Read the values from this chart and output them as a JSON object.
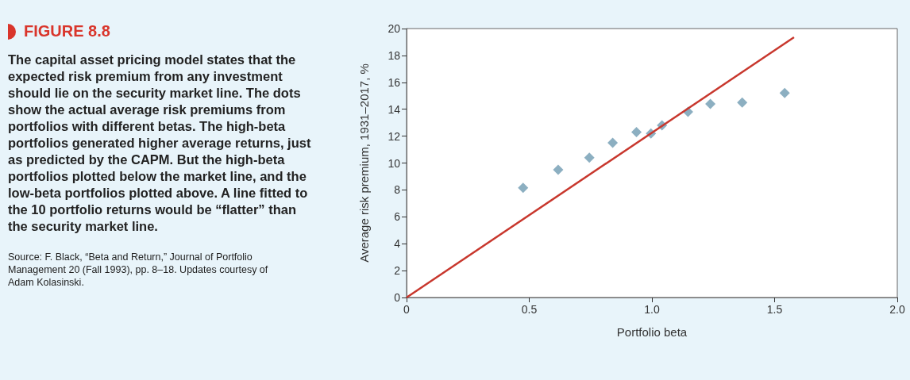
{
  "chart_data": {
    "type": "scatter",
    "title": "FIGURE 8.8",
    "subtitle": "The capital asset pricing model states that the expected risk premium from any investment should lie on the security market line. The dots show the actual average risk premiums from portfolios with different betas. The high-beta portfolios generated higher average returns, just as predicted by the CAPM. But the high-beta portfolios plotted below the market line, and the low-beta portfolios plotted above. A line fitted to the 10 portfolio returns would be “flatter” than the security market line.",
    "annotations": [
      "Source: F. Black, “Beta and Return,” Journal of Portfolio Management 20 (Fall 1993), pp. 8–18. Updates courtesy of Adam Kolasinski."
    ],
    "xlabel": "Portfolio beta",
    "ylabel": "Average risk premium, 1931–2017, %",
    "xlim": [
      0,
      2
    ],
    "xticks": [
      0,
      0.5,
      {
        "value": 1,
        "label": "1.0"
      },
      1.5,
      {
        "value": 2,
        "label": "2.0"
      }
    ],
    "ylim": [
      0,
      20
    ],
    "yticks": [
      0,
      2,
      4,
      6,
      8,
      10,
      12,
      14,
      16,
      18,
      20
    ],
    "grid": false,
    "series": [
      {
        "color": "#6f9bb2",
        "marker": "diamond",
        "x": [
          0.475,
          0.618,
          0.745,
          0.84,
          0.937,
          0.996,
          1.041,
          1.147,
          1.238,
          1.368,
          1.541
        ],
        "values": [
          8.15,
          9.5,
          10.4,
          11.5,
          12.3,
          12.2,
          12.8,
          13.8,
          14.4,
          14.5,
          15.2
        ]
      },
      {
        "type": "line",
        "color": "#c8372d",
        "marker": "none",
        "line_style": "solid",
        "x": [
          0,
          1.579
        ],
        "values": [
          0,
          19.35
        ]
      }
    ]
  }
}
